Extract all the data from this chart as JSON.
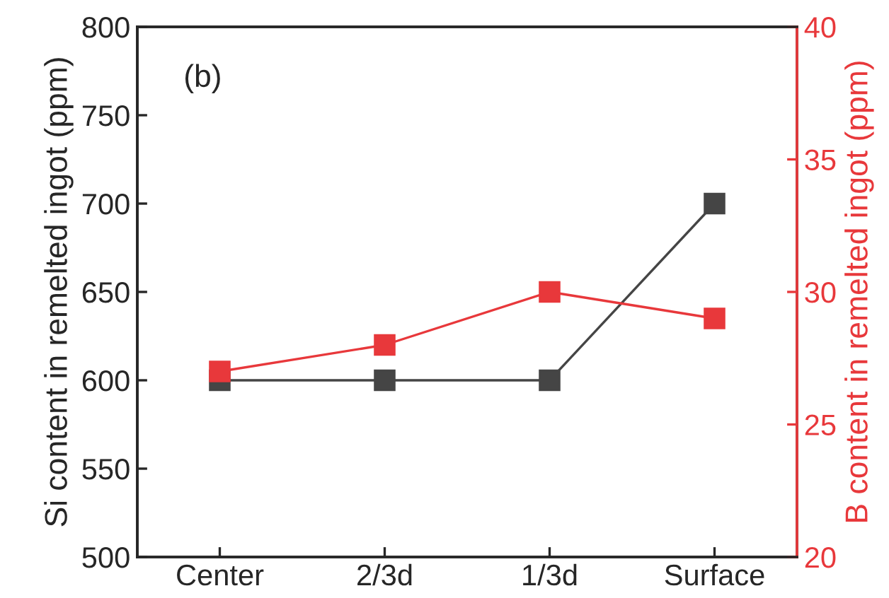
{
  "chart_data": {
    "type": "line",
    "categories": [
      "Center",
      "2/3d",
      "1/3d",
      "Surface"
    ],
    "ylabel": "Si content in remelted ingot (ppm)",
    "y2label": "B content in remelted ingot (ppm)",
    "series": [
      {
        "color": "#454545",
        "values": [
          600,
          600,
          600,
          700
        ]
      },
      {
        "color": "#e8383b",
        "values": [
          27,
          28,
          30,
          29
        ],
        "axis": "y2"
      }
    ],
    "ylim": [
      500,
      800
    ],
    "yticks": [
      500,
      550,
      600,
      650,
      700,
      750,
      800
    ],
    "y2lim": [
      20,
      40
    ],
    "y2ticks": [
      20,
      25,
      30,
      35,
      40
    ],
    "annotations": [
      "(b)"
    ],
    "marker": "square",
    "line_style": "solid",
    "grid": false,
    "legend": false
  }
}
